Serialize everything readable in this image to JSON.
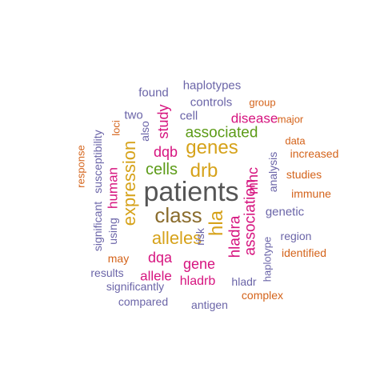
{
  "palette": {
    "gray": "#555555",
    "brown": "#8B6D2E",
    "magenta": "#D6147F",
    "gold": "#D6A21A",
    "green": "#5C9B17",
    "purple": "#6B65A8",
    "orange": "#D4631A"
  },
  "words": [
    {
      "text": "patients",
      "color": "gray"
    },
    {
      "text": "class",
      "color": "brown"
    },
    {
      "text": "hla",
      "color": "gold"
    },
    {
      "text": "genes",
      "color": "gold"
    },
    {
      "text": "drb",
      "color": "gold"
    },
    {
      "text": "expression",
      "color": "gold"
    },
    {
      "text": "alleles",
      "color": "gold"
    },
    {
      "text": "cells",
      "color": "green"
    },
    {
      "text": "associated",
      "color": "green"
    },
    {
      "text": "association",
      "color": "magenta"
    },
    {
      "text": "hladra",
      "color": "magenta"
    },
    {
      "text": "mhc",
      "color": "magenta"
    },
    {
      "text": "disease",
      "color": "magenta"
    },
    {
      "text": "dqb",
      "color": "magenta"
    },
    {
      "text": "study",
      "color": "magenta"
    },
    {
      "text": "human",
      "color": "magenta"
    },
    {
      "text": "dqa",
      "color": "magenta"
    },
    {
      "text": "gene",
      "color": "magenta"
    },
    {
      "text": "allele",
      "color": "magenta"
    },
    {
      "text": "hladrb",
      "color": "magenta"
    },
    {
      "text": "haplotypes",
      "color": "purple"
    },
    {
      "text": "found",
      "color": "purple"
    },
    {
      "text": "controls",
      "color": "purple"
    },
    {
      "text": "cell",
      "color": "purple"
    },
    {
      "text": "two",
      "color": "purple"
    },
    {
      "text": "also",
      "color": "purple"
    },
    {
      "text": "susceptibility",
      "color": "purple"
    },
    {
      "text": "significant",
      "color": "purple"
    },
    {
      "text": "using",
      "color": "purple"
    },
    {
      "text": "risk",
      "color": "purple"
    },
    {
      "text": "analysis",
      "color": "purple"
    },
    {
      "text": "genetic",
      "color": "purple"
    },
    {
      "text": "region",
      "color": "purple"
    },
    {
      "text": "haplotype",
      "color": "purple"
    },
    {
      "text": "results",
      "color": "purple"
    },
    {
      "text": "significantly",
      "color": "purple"
    },
    {
      "text": "compared",
      "color": "purple"
    },
    {
      "text": "antigen",
      "color": "purple"
    },
    {
      "text": "hladr",
      "color": "purple"
    },
    {
      "text": "group",
      "color": "orange"
    },
    {
      "text": "major",
      "color": "orange"
    },
    {
      "text": "loci",
      "color": "orange"
    },
    {
      "text": "data",
      "color": "orange"
    },
    {
      "text": "increased",
      "color": "orange"
    },
    {
      "text": "response",
      "color": "orange"
    },
    {
      "text": "studies",
      "color": "orange"
    },
    {
      "text": "immune",
      "color": "orange"
    },
    {
      "text": "may",
      "color": "orange"
    },
    {
      "text": "identified",
      "color": "orange"
    },
    {
      "text": "complex",
      "color": "orange"
    }
  ]
}
